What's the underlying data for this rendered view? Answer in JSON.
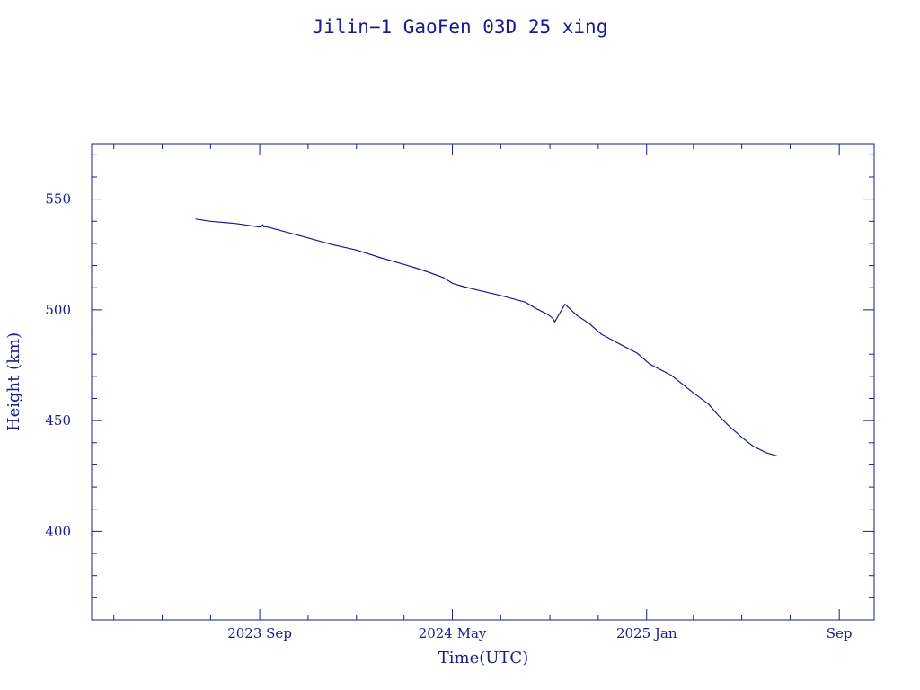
{
  "colors": {
    "ink": "#1a1a8c",
    "background": "#ffffff"
  },
  "chart_data": {
    "type": "line",
    "title": "Jilin−1 GaoFen 03D 25 xing",
    "xlabel": "Time(UTC)",
    "ylabel": "Height (km)",
    "x_axis_type": "date",
    "xlim": [
      "2023-02-01",
      "2025-10-15"
    ],
    "ylim": [
      360,
      575
    ],
    "x_major_ticks": [
      {
        "date": "2023-09-01",
        "label": "2023 Sep"
      },
      {
        "date": "2024-05-01",
        "label": "2024 May"
      },
      {
        "date": "2025-01-01",
        "label": "2025 Jan"
      },
      {
        "date": "2025-09-01",
        "label": "Sep"
      }
    ],
    "x_minor_ticks": [
      "2023-03-01",
      "2023-05-01",
      "2023-07-01",
      "2023-11-01",
      "2024-01-01",
      "2024-03-01",
      "2024-07-01",
      "2024-09-01",
      "2024-11-01",
      "2025-03-01",
      "2025-05-01",
      "2025-07-01"
    ],
    "y_major_ticks": [
      400,
      450,
      500,
      550
    ],
    "y_minor_ticks": [
      370,
      380,
      390,
      410,
      420,
      430,
      440,
      460,
      470,
      480,
      490,
      510,
      520,
      530,
      540,
      560,
      570
    ],
    "grid": false,
    "legend": "none",
    "series": [
      {
        "x": [
          "2023-06-12",
          "2023-07-01",
          "2023-08-01",
          "2023-08-30",
          "2023-09-03",
          "2023-09-05",
          "2023-09-06",
          "2023-09-10",
          "2023-10-01",
          "2023-11-01",
          "2023-12-01",
          "2024-01-01",
          "2024-02-01",
          "2024-03-01",
          "2024-03-15",
          "2024-04-01",
          "2024-04-20",
          "2024-05-01",
          "2024-05-15",
          "2024-06-01",
          "2024-07-01",
          "2024-08-01",
          "2024-08-15",
          "2024-08-29",
          "2024-09-05",
          "2024-09-07",
          "2024-09-20",
          "2024-10-05",
          "2024-10-20",
          "2024-11-05",
          "2024-12-01",
          "2024-12-20",
          "2025-01-05",
          "2025-02-01",
          "2025-03-01",
          "2025-03-20",
          "2025-04-01",
          "2025-04-15",
          "2025-05-01",
          "2025-05-15",
          "2025-06-01",
          "2025-06-15"
        ],
        "y": [
          541,
          540,
          539,
          537.5,
          537.5,
          538.5,
          537.5,
          537.5,
          535.5,
          532.5,
          529.5,
          527,
          523.5,
          520.5,
          519,
          517,
          514.5,
          512,
          510.5,
          509,
          506.5,
          503.5,
          500.5,
          498,
          496,
          494.5,
          502.5,
          497.5,
          494,
          489,
          484,
          480.5,
          475.5,
          470.5,
          462.5,
          457.5,
          452.5,
          447.5,
          442.5,
          438.5,
          435.5,
          434
        ]
      }
    ]
  }
}
